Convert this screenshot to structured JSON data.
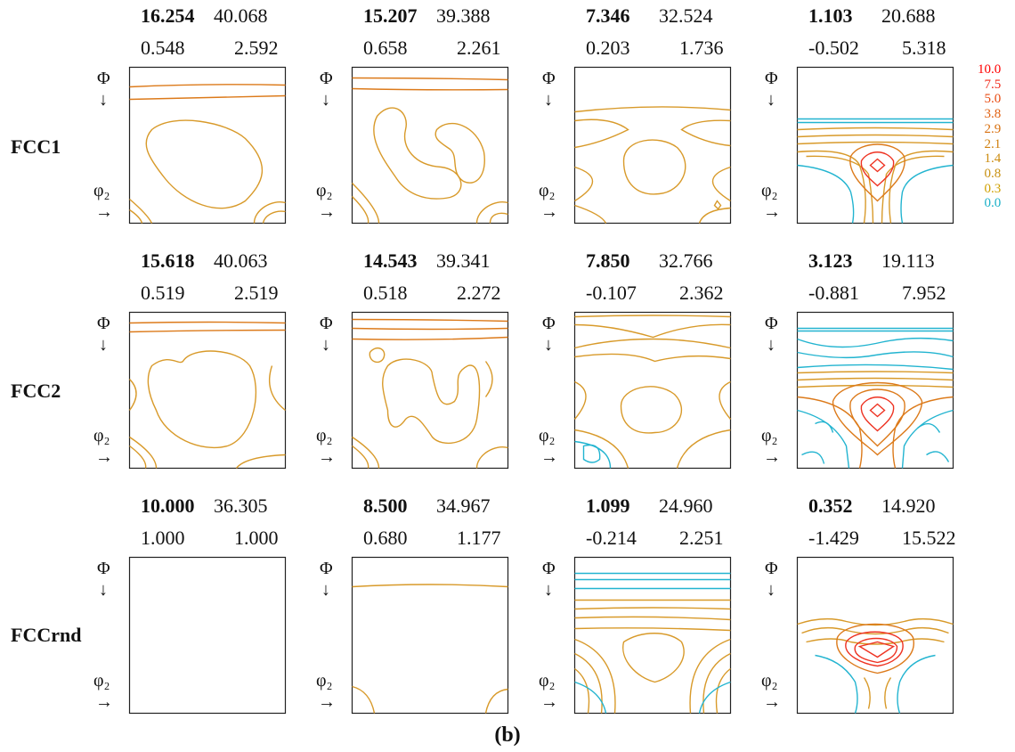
{
  "rows": [
    {
      "label": "FCC1",
      "cells": [
        {
          "bold": "16.254",
          "v1": "40.068",
          "v2": "0.548",
          "v3": "2.592"
        },
        {
          "bold": "15.207",
          "v1": "39.388",
          "v2": "0.658",
          "v3": "2.261"
        },
        {
          "bold": "7.346",
          "v1": "32.524",
          "v2": "0.203",
          "v3": "1.736"
        },
        {
          "bold": "1.103",
          "v1": "20.688",
          "v2": "-0.502",
          "v3": "5.318"
        }
      ]
    },
    {
      "label": "FCC2",
      "cells": [
        {
          "bold": "15.618",
          "v1": "40.063",
          "v2": "0.519",
          "v3": "2.519"
        },
        {
          "bold": "14.543",
          "v1": "39.341",
          "v2": "0.518",
          "v3": "2.272"
        },
        {
          "bold": "7.850",
          "v1": "32.766",
          "v2": "-0.107",
          "v3": "2.362"
        },
        {
          "bold": "3.123",
          "v1": "19.113",
          "v2": "-0.881",
          "v3": "7.952"
        }
      ]
    },
    {
      "label": "FCCrnd",
      "cells": [
        {
          "bold": "10.000",
          "v1": "36.305",
          "v2": "1.000",
          "v3": "1.000"
        },
        {
          "bold": "8.500",
          "v1": "34.967",
          "v2": "0.680",
          "v3": "1.177"
        },
        {
          "bold": "1.099",
          "v1": "24.960",
          "v2": "-0.214",
          "v3": "2.251"
        },
        {
          "bold": "0.352",
          "v1": "14.920",
          "v2": "-1.429",
          "v3": "15.522"
        }
      ]
    }
  ],
  "axis": {
    "phi": "Φ",
    "down_arrow": "↓",
    "phi2": "φ₂",
    "right_arrow": "→"
  },
  "legend": [
    {
      "label": "10.0",
      "color": "#ff0000"
    },
    {
      "label": "7.5",
      "color": "#f02a1a"
    },
    {
      "label": "5.0",
      "color": "#e84a10"
    },
    {
      "label": "3.8",
      "color": "#e06010"
    },
    {
      "label": "2.9",
      "color": "#d87010"
    },
    {
      "label": "2.1",
      "color": "#d08010"
    },
    {
      "label": "1.4",
      "color": "#cc8c10"
    },
    {
      "label": "0.8",
      "color": "#c89010"
    },
    {
      "label": "0.3",
      "color": "#d0a000"
    },
    {
      "label": "0.0",
      "color": "#1ab0c8"
    }
  ],
  "caption": "(b)"
}
